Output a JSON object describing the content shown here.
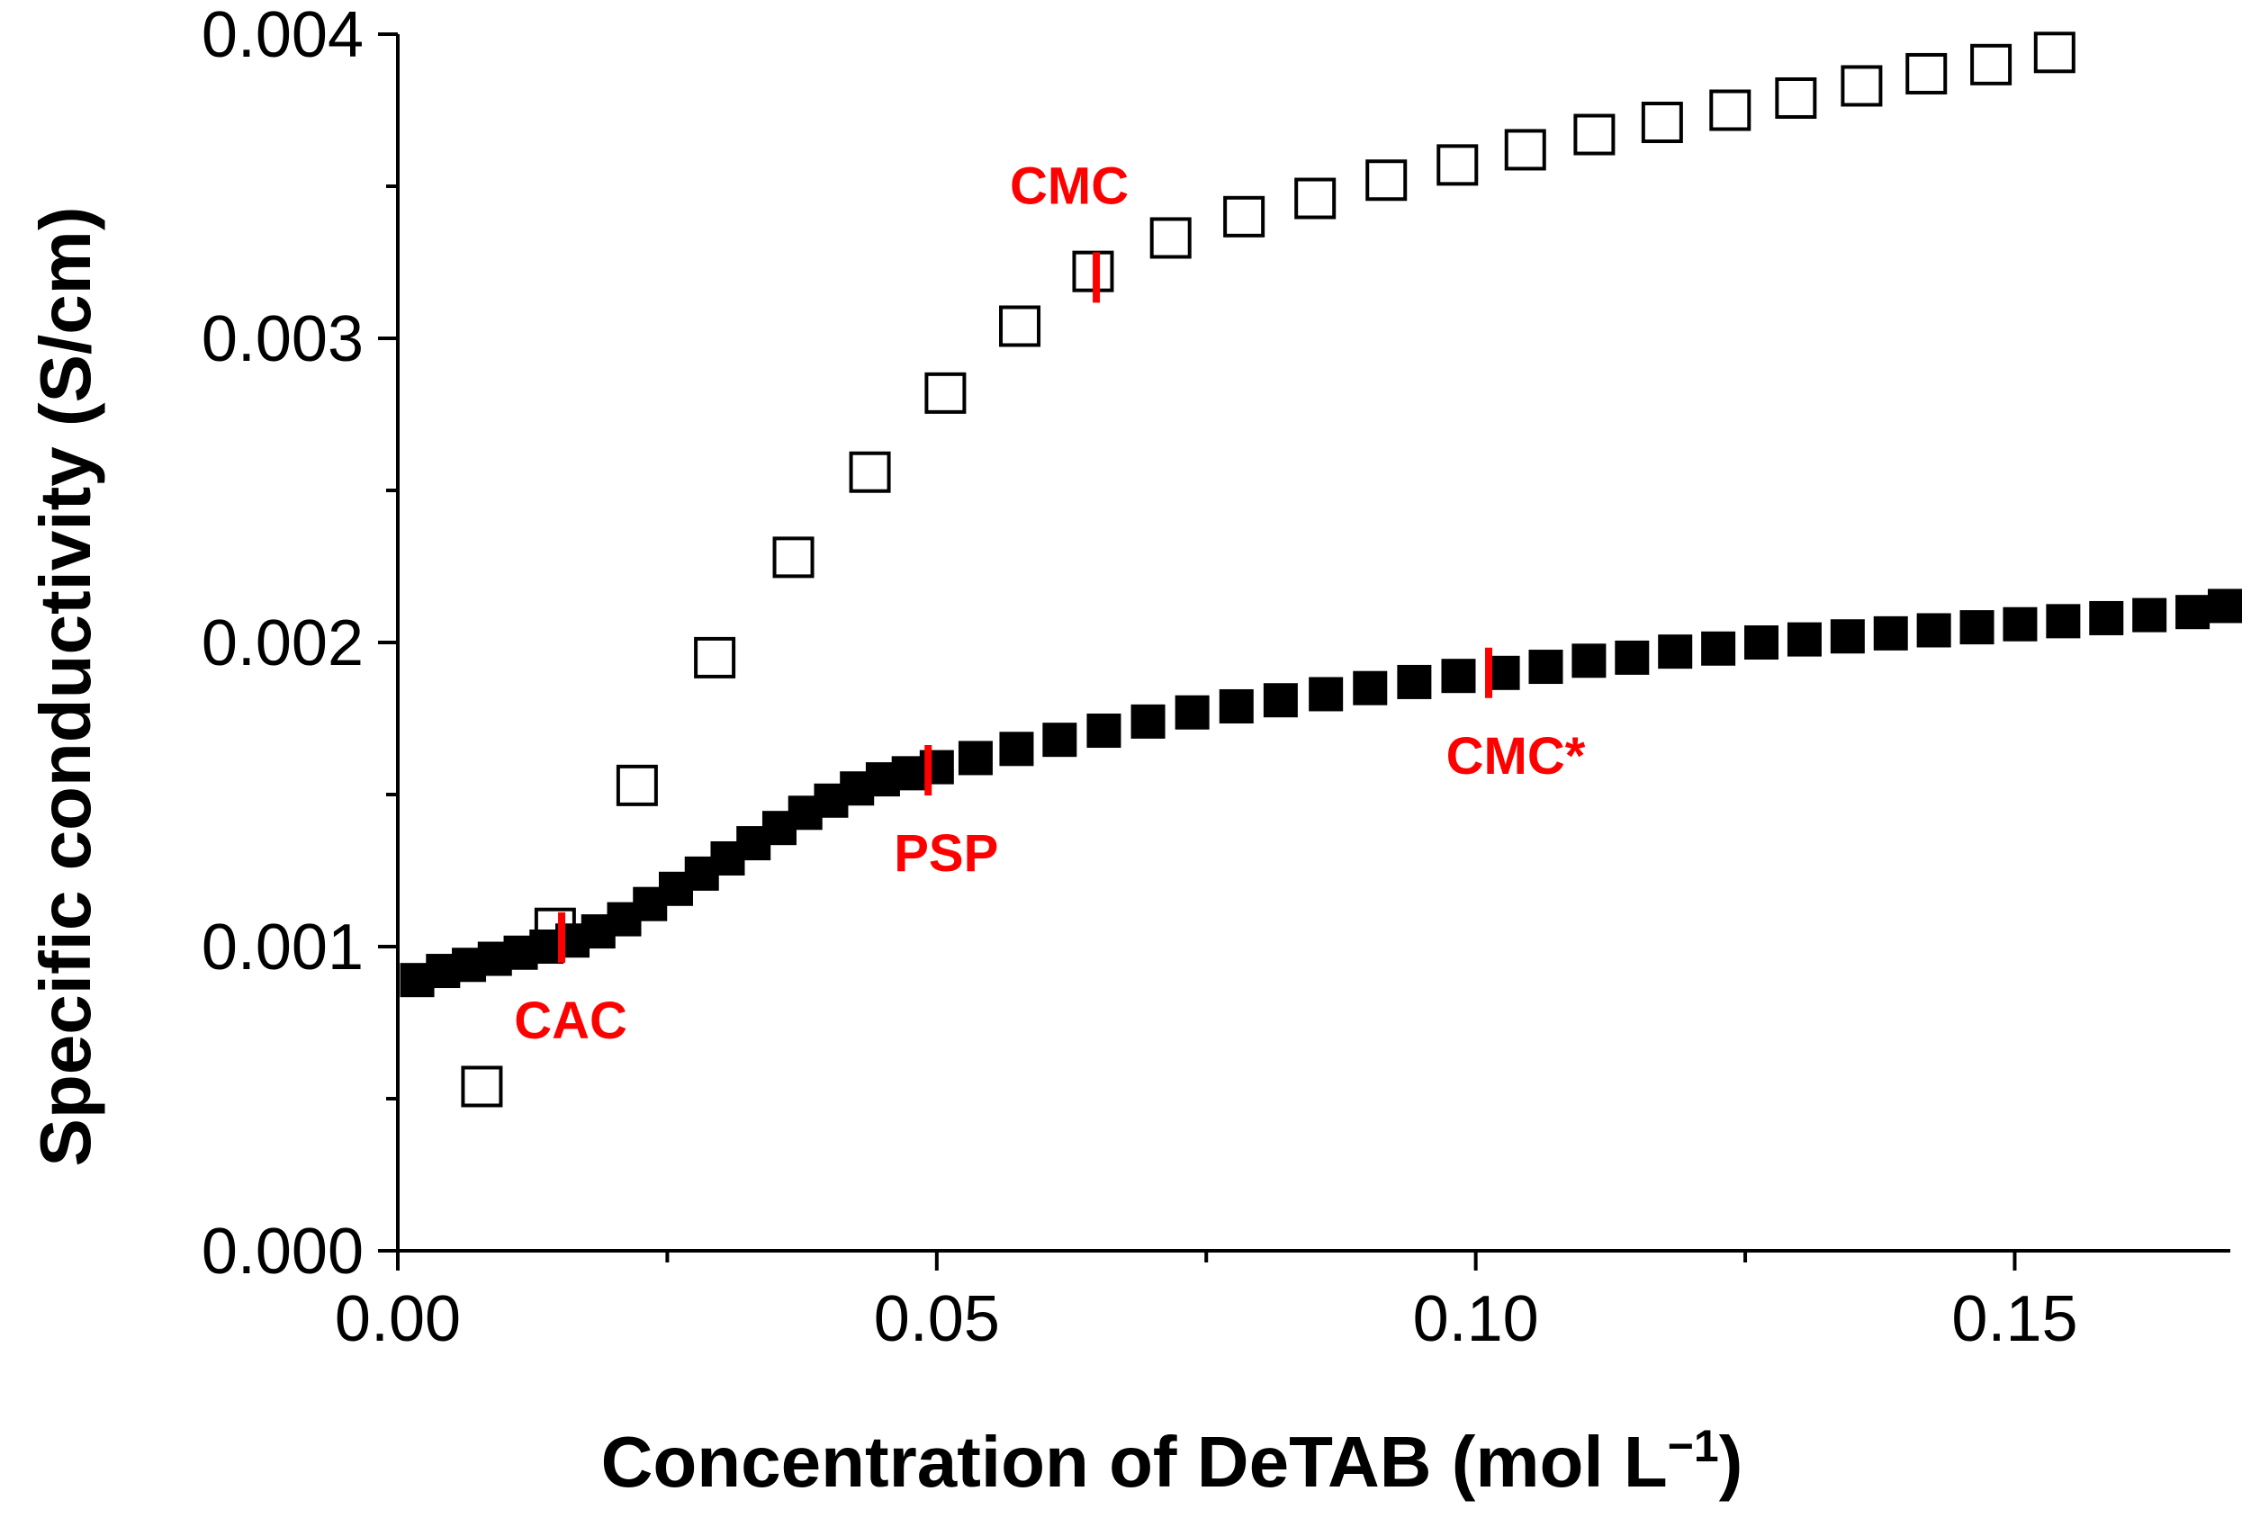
{
  "chart_data": {
    "type": "scatter",
    "title": "",
    "xlabel": "Concentration of DeTAB (mol L",
    "xlabel_superscript": "−1",
    "xlabel_close": ")",
    "ylabel": "Specific conductivity (S/cm)",
    "xlim": [
      0.0,
      0.17
    ],
    "ylim": [
      0.0,
      0.004
    ],
    "x_ticks": [
      {
        "value": 0.0,
        "label": "0.00"
      },
      {
        "value": 0.05,
        "label": "0.05"
      },
      {
        "value": 0.1,
        "label": "0.10"
      },
      {
        "value": 0.15,
        "label": "0.15"
      }
    ],
    "x_minor_ticks": [
      0.025,
      0.075,
      0.125
    ],
    "y_ticks": [
      {
        "value": 0.0,
        "label": "0.000"
      },
      {
        "value": 0.001,
        "label": "0.001"
      },
      {
        "value": 0.002,
        "label": "0.002"
      },
      {
        "value": 0.003,
        "label": "0.003"
      },
      {
        "value": 0.004,
        "label": "0.004"
      }
    ],
    "y_minor_ticks": [
      0.0005,
      0.0015,
      0.0025,
      0.0035
    ],
    "grid": false,
    "series": [
      {
        "name": "open squares",
        "marker": "open-square",
        "color": "#000000",
        "x": [
          0.0078,
          0.0146,
          0.0222,
          0.0294,
          0.0367,
          0.0438,
          0.0508,
          0.0577,
          0.0645,
          0.0717,
          0.0785,
          0.0851,
          0.0917,
          0.0983,
          0.1046,
          0.111,
          0.1173,
          0.1236,
          0.1297,
          0.1358,
          0.1418,
          0.1478,
          0.1537
        ],
        "y": [
          0.00054,
          0.00106,
          0.00153,
          0.00195,
          0.00228,
          0.00256,
          0.00282,
          0.00304,
          0.00322,
          0.00333,
          0.0034,
          0.00346,
          0.00352,
          0.00357,
          0.00362,
          0.00367,
          0.00371,
          0.00375,
          0.00379,
          0.00383,
          0.00387,
          0.0039,
          0.00394
        ]
      },
      {
        "name": "filled squares",
        "marker": "filled-square",
        "color": "#000000",
        "x": [
          0.0018,
          0.0042,
          0.0066,
          0.009,
          0.0114,
          0.0138,
          0.0162,
          0.0186,
          0.021,
          0.0234,
          0.0258,
          0.0282,
          0.0306,
          0.033,
          0.0354,
          0.0378,
          0.0402,
          0.0426,
          0.045,
          0.0474,
          0.05,
          0.0536,
          0.0574,
          0.0614,
          0.0655,
          0.0696,
          0.0737,
          0.0778,
          0.0819,
          0.0861,
          0.0902,
          0.0943,
          0.0984,
          0.1025,
          0.1065,
          0.1105,
          0.1145,
          0.1185,
          0.1225,
          0.1265,
          0.1305,
          0.1345,
          0.1385,
          0.1425,
          0.1465,
          0.1505,
          0.1545,
          0.1585,
          0.1625,
          0.1665,
          0.1695
        ],
        "y": [
          0.00089,
          0.00092,
          0.00094,
          0.00096,
          0.00098,
          0.001,
          0.00102,
          0.00105,
          0.00109,
          0.00114,
          0.00119,
          0.00124,
          0.00129,
          0.00134,
          0.00139,
          0.00144,
          0.00148,
          0.00152,
          0.00155,
          0.00157,
          0.00159,
          0.00162,
          0.00165,
          0.00168,
          0.00171,
          0.00174,
          0.00177,
          0.00179,
          0.00181,
          0.00183,
          0.00185,
          0.00187,
          0.00189,
          0.0019,
          0.00192,
          0.00194,
          0.00195,
          0.00197,
          0.00198,
          0.002,
          0.00201,
          0.00202,
          0.00203,
          0.00204,
          0.00205,
          0.00206,
          0.00207,
          0.00208,
          0.00209,
          0.0021,
          0.00212
        ]
      }
    ],
    "annotations": [
      {
        "label": "CMC",
        "x": 0.0648,
        "y": 0.0032,
        "placement": "above",
        "color": "#ff0000"
      },
      {
        "label": "PSP",
        "x": 0.0492,
        "y": 0.00158,
        "placement": "below",
        "color": "#ff0000"
      },
      {
        "label": "CAC",
        "x": 0.0152,
        "y": 0.00103,
        "placement": "below",
        "color": "#ff0000"
      },
      {
        "label": "CMC*",
        "x": 0.1012,
        "y": 0.0019,
        "placement": "below",
        "color": "#ff0000"
      }
    ]
  }
}
